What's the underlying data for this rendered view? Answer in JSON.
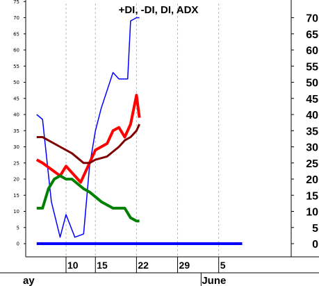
{
  "chart_data": {
    "type": "line",
    "title": "+DI, -DI, DI, ADX",
    "xlabel": "",
    "ylabel": "",
    "ylim": [
      0,
      75
    ],
    "y_ticks_left": [
      0,
      5,
      10,
      15,
      20,
      25,
      30,
      35,
      40,
      45,
      50,
      55,
      60,
      65,
      70,
      75
    ],
    "y_ticks_right": [
      0,
      5,
      10,
      15,
      20,
      25,
      30,
      35,
      40,
      45,
      50,
      55,
      60,
      65,
      70
    ],
    "grid": true,
    "date_ticks": [
      {
        "label": "10",
        "day": 10
      },
      {
        "label": "15",
        "day": 15
      },
      {
        "label": "22",
        "day": 22
      },
      {
        "label": "29",
        "day": 29
      },
      {
        "label": "5",
        "day": 36
      }
    ],
    "month_labels": [
      {
        "label": "ay",
        "day": 5.5
      },
      {
        "label": "June",
        "day": 33
      }
    ],
    "series": [
      {
        "color": "#0000ff",
        "width": 1.5,
        "x": [
          5,
          6,
          7.5,
          9,
          10,
          11.5,
          13,
          14,
          15,
          16,
          18,
          19,
          20.5,
          21,
          22,
          22.5
        ],
        "y": [
          40,
          38.5,
          13,
          2,
          9,
          2,
          3,
          24,
          35,
          42,
          53,
          51,
          51,
          69,
          70,
          70
        ]
      },
      {
        "color": "#ff0000",
        "width": 4,
        "x": [
          5,
          6,
          9,
          10,
          12.5,
          14,
          15,
          16,
          17,
          18,
          19,
          20,
          21,
          22,
          22.5
        ],
        "y": [
          26,
          25,
          21,
          24,
          19,
          25,
          29,
          30,
          31,
          35,
          36,
          33,
          37,
          46,
          39
        ]
      },
      {
        "color": "#7f0000",
        "width": 3,
        "x": [
          5,
          6,
          7,
          9,
          11,
          13,
          14,
          15,
          17,
          19,
          20,
          21,
          22,
          22.5
        ],
        "y": [
          33,
          33,
          32,
          30,
          28,
          25,
          25,
          26,
          27,
          30,
          32,
          33,
          35,
          37
        ]
      },
      {
        "color": "#008000",
        "width": 4,
        "x": [
          5,
          6,
          7,
          8,
          9,
          10,
          11,
          13,
          14,
          16,
          17,
          18,
          19,
          20,
          21,
          22,
          22.5
        ],
        "y": [
          11,
          11,
          17,
          20,
          21,
          20,
          20,
          17,
          16,
          13,
          12,
          11,
          11,
          11,
          8,
          7,
          7
        ]
      },
      {
        "color": "#0000ff",
        "width": 4,
        "x": [
          5,
          40
        ],
        "y": [
          0,
          0
        ]
      }
    ]
  }
}
